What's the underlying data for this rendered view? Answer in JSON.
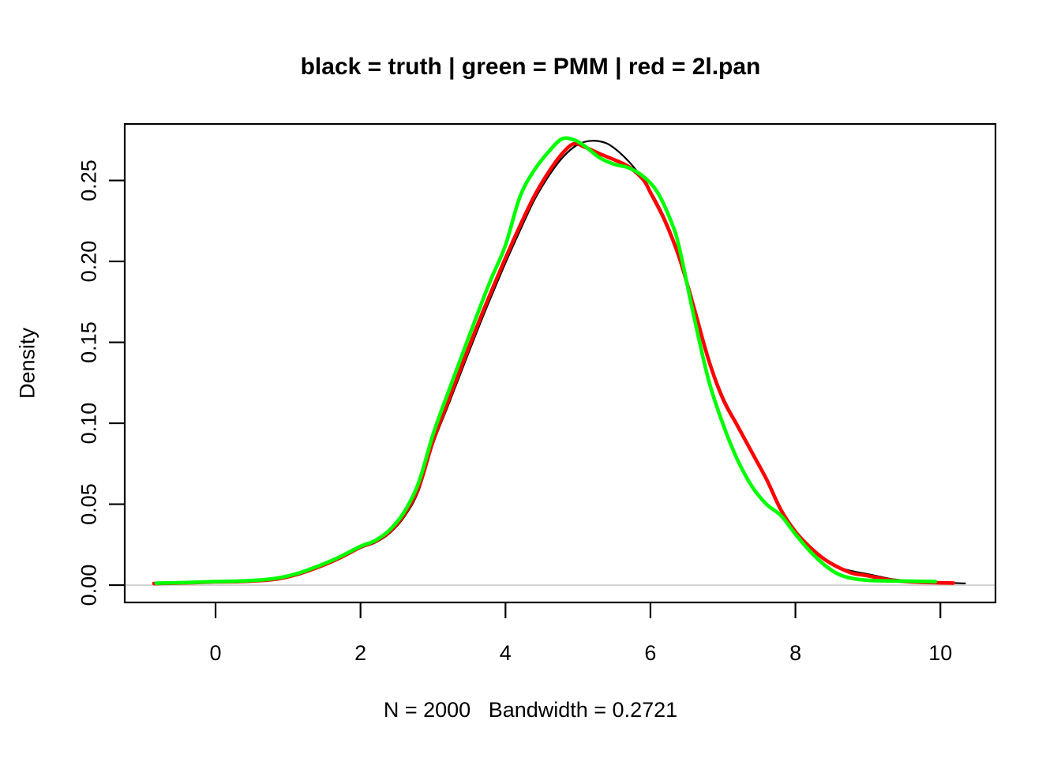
{
  "title": "black = truth | green = PMM | red = 2l.pan",
  "subtitle": "N = 2000   Bandwidth = 0.2721",
  "chart_data": {
    "type": "line",
    "title": "black = truth | green = PMM | red = 2l.pan",
    "xlabel": "N = 2000   Bandwidth = 0.2721",
    "ylabel": "Density",
    "x_ticks": [
      0,
      2,
      4,
      6,
      8,
      10
    ],
    "x_tick_labels": [
      "0",
      "2",
      "4",
      "6",
      "8",
      "10"
    ],
    "y_ticks": [
      0.0,
      0.05,
      0.1,
      0.15,
      0.2,
      0.25
    ],
    "y_tick_labels": [
      "0.00",
      "0.05",
      "0.10",
      "0.15",
      "0.20",
      "0.25"
    ],
    "x_usr": [
      -1.253,
      10.76
    ],
    "y_usr": [
      -0.0107,
      0.2849
    ],
    "grid": false,
    "legend_position": "in-title",
    "zero_line": {
      "y": 0,
      "color": "#d3d3d3"
    },
    "frame_color": "#000000",
    "series": [
      {
        "name": "truth",
        "color": "#000000",
        "line_width": 2.2,
        "points": [
          [
            -0.85,
            0.001
          ],
          [
            -0.4,
            0.0013
          ],
          [
            0,
            0.0019
          ],
          [
            0.4,
            0.0022
          ],
          [
            0.8,
            0.0033
          ],
          [
            1.1,
            0.006
          ],
          [
            1.4,
            0.0105
          ],
          [
            1.7,
            0.016
          ],
          [
            2.0,
            0.0228
          ],
          [
            2.2,
            0.0262
          ],
          [
            2.4,
            0.032
          ],
          [
            2.6,
            0.042
          ],
          [
            2.8,
            0.058
          ],
          [
            3.0,
            0.087
          ],
          [
            3.2,
            0.11
          ],
          [
            3.4,
            0.133
          ],
          [
            3.6,
            0.156
          ],
          [
            3.8,
            0.178
          ],
          [
            4.0,
            0.199
          ],
          [
            4.2,
            0.219
          ],
          [
            4.4,
            0.238
          ],
          [
            4.6,
            0.253
          ],
          [
            4.8,
            0.2648
          ],
          [
            5.0,
            0.2722
          ],
          [
            5.2,
            0.2745
          ],
          [
            5.4,
            0.2728
          ],
          [
            5.6,
            0.2662
          ],
          [
            5.8,
            0.2565
          ],
          [
            6.0,
            0.2435
          ],
          [
            6.2,
            0.2265
          ],
          [
            6.4,
            0.2035
          ],
          [
            6.6,
            0.173
          ],
          [
            6.8,
            0.141
          ],
          [
            7.0,
            0.1165
          ],
          [
            7.2,
            0.0995
          ],
          [
            7.4,
            0.083
          ],
          [
            7.6,
            0.066
          ],
          [
            7.8,
            0.047
          ],
          [
            8.0,
            0.0335
          ],
          [
            8.2,
            0.0235
          ],
          [
            8.4,
            0.016
          ],
          [
            8.6,
            0.011
          ],
          [
            8.8,
            0.0085
          ],
          [
            9.0,
            0.0068
          ],
          [
            9.3,
            0.004
          ],
          [
            9.6,
            0.0026
          ],
          [
            10.0,
            0.0016
          ],
          [
            10.34,
            0.0011
          ]
        ]
      },
      {
        "name": "2l.pan",
        "color": "#ff0000",
        "line_width": 4.6,
        "points": [
          [
            -0.85,
            0.001
          ],
          [
            -0.4,
            0.0014
          ],
          [
            0,
            0.002
          ],
          [
            0.4,
            0.0023
          ],
          [
            0.8,
            0.0035
          ],
          [
            1.1,
            0.0063
          ],
          [
            1.4,
            0.0108
          ],
          [
            1.7,
            0.0165
          ],
          [
            2.0,
            0.0235
          ],
          [
            2.2,
            0.027
          ],
          [
            2.4,
            0.033
          ],
          [
            2.6,
            0.0435
          ],
          [
            2.8,
            0.06
          ],
          [
            3.0,
            0.089
          ],
          [
            3.2,
            0.1125
          ],
          [
            3.4,
            0.136
          ],
          [
            3.6,
            0.159
          ],
          [
            3.8,
            0.181
          ],
          [
            4.0,
            0.202
          ],
          [
            4.2,
            0.222
          ],
          [
            4.4,
            0.2405
          ],
          [
            4.6,
            0.2555
          ],
          [
            4.8,
            0.2675
          ],
          [
            4.95,
            0.2727
          ],
          [
            5.1,
            0.2705
          ],
          [
            5.3,
            0.2665
          ],
          [
            5.5,
            0.2628
          ],
          [
            5.7,
            0.2585
          ],
          [
            5.9,
            0.2505
          ],
          [
            6.0,
            0.2425
          ],
          [
            6.2,
            0.225
          ],
          [
            6.4,
            0.202
          ],
          [
            6.6,
            0.1715
          ],
          [
            6.8,
            0.1395
          ],
          [
            7.0,
            0.115
          ],
          [
            7.2,
            0.0985
          ],
          [
            7.4,
            0.082
          ],
          [
            7.6,
            0.0655
          ],
          [
            7.8,
            0.0465
          ],
          [
            8.0,
            0.033
          ],
          [
            8.2,
            0.0235
          ],
          [
            8.4,
            0.016
          ],
          [
            8.6,
            0.0108
          ],
          [
            8.8,
            0.0072
          ],
          [
            9.0,
            0.0058
          ],
          [
            9.3,
            0.0032
          ],
          [
            9.6,
            0.002
          ],
          [
            10.0,
            0.0014
          ],
          [
            10.18,
            0.0013
          ]
        ]
      },
      {
        "name": "PMM",
        "color": "#00ff00",
        "line_width": 4.6,
        "points": [
          [
            -0.82,
            0.0012
          ],
          [
            -0.4,
            0.0016
          ],
          [
            0,
            0.0022
          ],
          [
            0.4,
            0.0026
          ],
          [
            0.8,
            0.004
          ],
          [
            1.1,
            0.0068
          ],
          [
            1.4,
            0.0115
          ],
          [
            1.7,
            0.0172
          ],
          [
            2.0,
            0.024
          ],
          [
            2.2,
            0.0275
          ],
          [
            2.4,
            0.034
          ],
          [
            2.6,
            0.045
          ],
          [
            2.8,
            0.063
          ],
          [
            3.0,
            0.093
          ],
          [
            3.2,
            0.118
          ],
          [
            3.4,
            0.142
          ],
          [
            3.6,
            0.166
          ],
          [
            3.8,
            0.189
          ],
          [
            4.0,
            0.21
          ],
          [
            4.2,
            0.24
          ],
          [
            4.4,
            0.2565
          ],
          [
            4.6,
            0.268
          ],
          [
            4.78,
            0.2757
          ],
          [
            4.95,
            0.275
          ],
          [
            5.1,
            0.271
          ],
          [
            5.3,
            0.264
          ],
          [
            5.5,
            0.26
          ],
          [
            5.7,
            0.2578
          ],
          [
            5.9,
            0.2525
          ],
          [
            6.1,
            0.2425
          ],
          [
            6.3,
            0.223
          ],
          [
            6.4,
            0.208
          ],
          [
            6.6,
            0.166
          ],
          [
            6.8,
            0.127
          ],
          [
            7.0,
            0.0995
          ],
          [
            7.2,
            0.0775
          ],
          [
            7.4,
            0.061
          ],
          [
            7.6,
            0.05
          ],
          [
            7.8,
            0.043
          ],
          [
            8.0,
            0.0315
          ],
          [
            8.2,
            0.021
          ],
          [
            8.4,
            0.0125
          ],
          [
            8.6,
            0.0066
          ],
          [
            8.8,
            0.004
          ],
          [
            9.0,
            0.003
          ],
          [
            9.3,
            0.0026
          ],
          [
            9.6,
            0.0024
          ],
          [
            9.93,
            0.0022
          ]
        ]
      }
    ]
  }
}
